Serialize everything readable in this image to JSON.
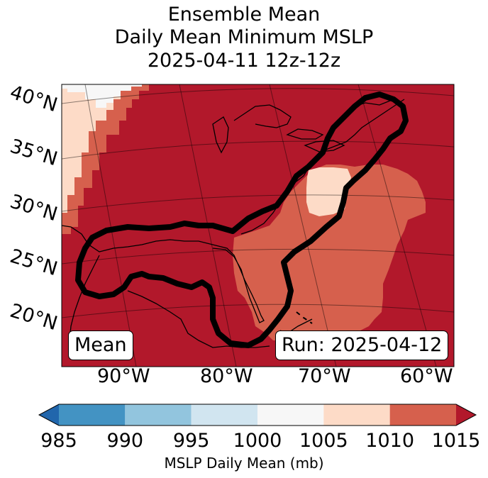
{
  "title": {
    "line1": "Ensemble Mean",
    "line2": "Daily Mean Minimum MSLP",
    "line3": "2025-04-11 12z-12z"
  },
  "map": {
    "lat_labels": [
      "40°N",
      "35°N",
      "30°N",
      "25°N",
      "20°N"
    ],
    "lon_labels": [
      "90°W",
      "80°W",
      "70°W",
      "60°W"
    ],
    "mean_label": "Mean",
    "run_label": "Run: 2025-04-12",
    "contour_color": "#000000"
  },
  "colorbar": {
    "label": "MSLP Daily Mean (mb)",
    "ticks": [
      "985",
      "990",
      "995",
      "1000",
      "1005",
      "1010",
      "1015"
    ],
    "colors": [
      "#2166ac",
      "#4393c3",
      "#92c5de",
      "#d1e5f0",
      "#f7f7f7",
      "#fddbc7",
      "#d6604d",
      "#b2182b"
    ],
    "bins": [
      {
        "min": 985,
        "max": 990,
        "color": "#4393c3"
      },
      {
        "min": 990,
        "max": 995,
        "color": "#92c5de"
      },
      {
        "min": 995,
        "max": 1000,
        "color": "#d1e5f0"
      },
      {
        "min": 1000,
        "max": 1005,
        "color": "#f7f7f7"
      },
      {
        "min": 1005,
        "max": 1010,
        "color": "#fddbc7"
      },
      {
        "min": 1010,
        "max": 1015,
        "color": "#d6604d"
      }
    ],
    "under_color": "#2166ac",
    "over_color": "#b2182b"
  }
}
